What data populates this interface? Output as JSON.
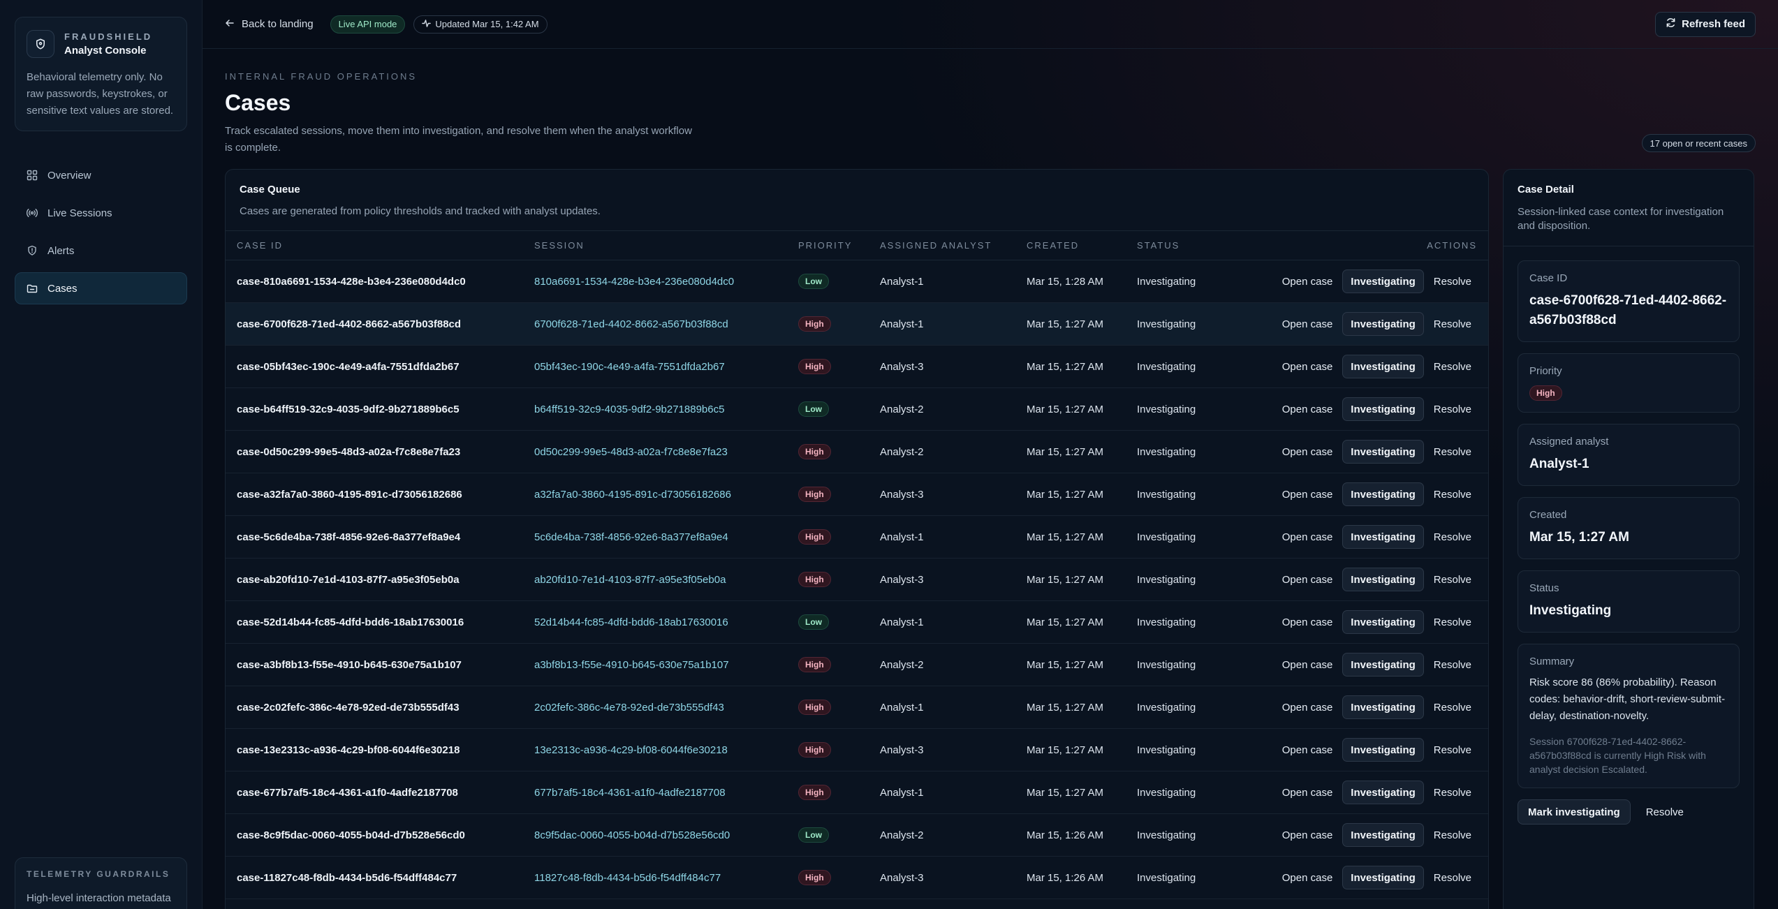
{
  "brand": {
    "kicker": "FRAUDSHIELD",
    "title": "Analyst Console",
    "description": "Behavioral telemetry only. No raw passwords, keystrokes, or sensitive text values are stored."
  },
  "nav": [
    {
      "label": "Overview",
      "icon": "grid-icon"
    },
    {
      "label": "Live Sessions",
      "icon": "radio-icon"
    },
    {
      "label": "Alerts",
      "icon": "shield-icon"
    },
    {
      "label": "Cases",
      "icon": "folder-icon",
      "active": true
    }
  ],
  "guardrail": {
    "kicker": "TELEMETRY GUARDRAILS",
    "text": "High-level interaction metadata only."
  },
  "topbar": {
    "back_label": "Back to landing",
    "live_label": "Live API mode",
    "updated_label": "Updated Mar 15, 1:42 AM",
    "refresh_label": "Refresh feed"
  },
  "page": {
    "kicker": "INTERNAL FRAUD OPERATIONS",
    "title": "Cases",
    "description": "Track escalated sessions, move them into investigation, and resolve them when the analyst workflow is complete.",
    "count_label": "17 open or recent cases"
  },
  "queue": {
    "title": "Case Queue",
    "subtitle": "Cases are generated from policy thresholds and tracked with analyst updates.",
    "columns": {
      "case_id": "CASE ID",
      "session": "SESSION",
      "priority": "PRIORITY",
      "analyst": "ASSIGNED ANALYST",
      "created": "CREATED",
      "status": "STATUS",
      "actions": "ACTIONS"
    },
    "action_labels": {
      "open": "Open case",
      "investigating": "Investigating",
      "resolve": "Resolve"
    },
    "rows": [
      {
        "case_id": "case-810a6691-1534-428e-b3e4-236e080d4dc0",
        "session": "810a6691-1534-428e-b3e4-236e080d4dc0",
        "priority": "Low",
        "analyst": "Analyst-1",
        "created": "Mar 15, 1:28 AM",
        "status": "Investigating"
      },
      {
        "case_id": "case-6700f628-71ed-4402-8662-a567b03f88cd",
        "session": "6700f628-71ed-4402-8662-a567b03f88cd",
        "priority": "High",
        "analyst": "Analyst-1",
        "created": "Mar 15, 1:27 AM",
        "status": "Investigating",
        "selected": true
      },
      {
        "case_id": "case-05bf43ec-190c-4e49-a4fa-7551dfda2b67",
        "session": "05bf43ec-190c-4e49-a4fa-7551dfda2b67",
        "priority": "High",
        "analyst": "Analyst-3",
        "created": "Mar 15, 1:27 AM",
        "status": "Investigating"
      },
      {
        "case_id": "case-b64ff519-32c9-4035-9df2-9b271889b6c5",
        "session": "b64ff519-32c9-4035-9df2-9b271889b6c5",
        "priority": "Low",
        "analyst": "Analyst-2",
        "created": "Mar 15, 1:27 AM",
        "status": "Investigating"
      },
      {
        "case_id": "case-0d50c299-99e5-48d3-a02a-f7c8e8e7fa23",
        "session": "0d50c299-99e5-48d3-a02a-f7c8e8e7fa23",
        "priority": "High",
        "analyst": "Analyst-2",
        "created": "Mar 15, 1:27 AM",
        "status": "Investigating"
      },
      {
        "case_id": "case-a32fa7a0-3860-4195-891c-d73056182686",
        "session": "a32fa7a0-3860-4195-891c-d73056182686",
        "priority": "High",
        "analyst": "Analyst-3",
        "created": "Mar 15, 1:27 AM",
        "status": "Investigating"
      },
      {
        "case_id": "case-5c6de4ba-738f-4856-92e6-8a377ef8a9e4",
        "session": "5c6de4ba-738f-4856-92e6-8a377ef8a9e4",
        "priority": "High",
        "analyst": "Analyst-1",
        "created": "Mar 15, 1:27 AM",
        "status": "Investigating"
      },
      {
        "case_id": "case-ab20fd10-7e1d-4103-87f7-a95e3f05eb0a",
        "session": "ab20fd10-7e1d-4103-87f7-a95e3f05eb0a",
        "priority": "High",
        "analyst": "Analyst-3",
        "created": "Mar 15, 1:27 AM",
        "status": "Investigating"
      },
      {
        "case_id": "case-52d14b44-fc85-4dfd-bdd6-18ab17630016",
        "session": "52d14b44-fc85-4dfd-bdd6-18ab17630016",
        "priority": "Low",
        "analyst": "Analyst-1",
        "created": "Mar 15, 1:27 AM",
        "status": "Investigating"
      },
      {
        "case_id": "case-a3bf8b13-f55e-4910-b645-630e75a1b107",
        "session": "a3bf8b13-f55e-4910-b645-630e75a1b107",
        "priority": "High",
        "analyst": "Analyst-2",
        "created": "Mar 15, 1:27 AM",
        "status": "Investigating"
      },
      {
        "case_id": "case-2c02fefc-386c-4e78-92ed-de73b555df43",
        "session": "2c02fefc-386c-4e78-92ed-de73b555df43",
        "priority": "High",
        "analyst": "Analyst-1",
        "created": "Mar 15, 1:27 AM",
        "status": "Investigating"
      },
      {
        "case_id": "case-13e2313c-a936-4c29-bf08-6044f6e30218",
        "session": "13e2313c-a936-4c29-bf08-6044f6e30218",
        "priority": "High",
        "analyst": "Analyst-3",
        "created": "Mar 15, 1:27 AM",
        "status": "Investigating"
      },
      {
        "case_id": "case-677b7af5-18c4-4361-a1f0-4adfe2187708",
        "session": "677b7af5-18c4-4361-a1f0-4adfe2187708",
        "priority": "High",
        "analyst": "Analyst-1",
        "created": "Mar 15, 1:27 AM",
        "status": "Investigating"
      },
      {
        "case_id": "case-8c9f5dac-0060-4055-b04d-d7b528e56cd0",
        "session": "8c9f5dac-0060-4055-b04d-d7b528e56cd0",
        "priority": "Low",
        "analyst": "Analyst-2",
        "created": "Mar 15, 1:26 AM",
        "status": "Investigating"
      },
      {
        "case_id": "case-11827c48-f8db-4434-b5d6-f54dff484c77",
        "session": "11827c48-f8db-4434-b5d6-f54dff484c77",
        "priority": "High",
        "analyst": "Analyst-3",
        "created": "Mar 15, 1:26 AM",
        "status": "Investigating"
      }
    ]
  },
  "detail": {
    "title": "Case Detail",
    "subtitle": "Session-linked case context for investigation and disposition.",
    "case_id_label": "Case ID",
    "case_id": "case-6700f628-71ed-4402-8662-a567b03f88cd",
    "priority_label": "Priority",
    "priority": "High",
    "analyst_label": "Assigned analyst",
    "analyst": "Analyst-1",
    "created_label": "Created",
    "created": "Mar 15, 1:27 AM",
    "status_label": "Status",
    "status": "Investigating",
    "summary_label": "Summary",
    "summary": "Risk score 86 (86% probability). Reason codes: behavior-drift, short-review-submit-delay, destination-novelty.",
    "summary_note": "Session 6700f628-71ed-4402-8662-a567b03f88cd is currently High Risk with analyst decision Escalated.",
    "mark_label": "Mark investigating",
    "resolve_label": "Resolve"
  }
}
